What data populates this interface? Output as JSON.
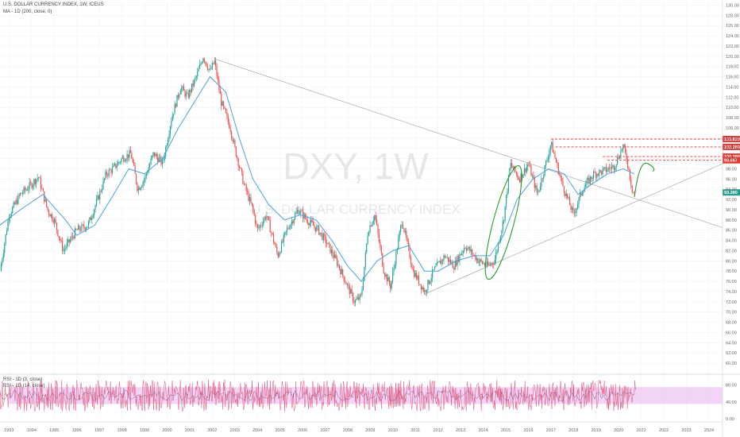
{
  "legend": {
    "title": "U.S. DOLLAR CURRENCY INDEX, 1W, ICEUS",
    "ma": "MA - 1D (200, close, 0)",
    "rsi": "RSI - 1D (3, close)",
    "rsi_ma": "RSI - 1D (14, close)"
  },
  "watermark": {
    "symbol": "DXY, 1W",
    "name": "U.S. DOLLAR CURRENCY INDEX"
  },
  "colors": {
    "up": "#26a69a",
    "down": "#ef5350",
    "ma": "#4aa3df",
    "trend": "#9e9e9e",
    "level": "#e53935",
    "annotation": "#2e9e2e",
    "rsi": "#e05070",
    "rsi_band": "#e8b0ee",
    "current_badge": "#2a9d8f"
  },
  "chart_data": {
    "type": "candlestick",
    "x_axis_labels": [
      "1993",
      "1994",
      "1995",
      "1996",
      "1997",
      "1998",
      "1999",
      "2000",
      "2001",
      "2002",
      "2003",
      "2004",
      "2005",
      "2006",
      "2007",
      "2008",
      "2009",
      "2010",
      "2011",
      "2012",
      "2013",
      "2014",
      "2015",
      "2016",
      "2017",
      "2018",
      "2019",
      "2020",
      "2021",
      "2022",
      "2023",
      "2024"
    ],
    "y_axis_labels": [
      "130.00",
      "128.00",
      "126.00",
      "124.00",
      "122.00",
      "120.00",
      "118.00",
      "116.00",
      "114.00",
      "112.00",
      "110.00",
      "108.00",
      "106.00",
      "104.00",
      "102.00",
      "100.00",
      "98.00",
      "96.00",
      "94.00",
      "92.00",
      "90.00",
      "88.00",
      "86.00",
      "84.00",
      "82.00",
      "80.00",
      "78.00",
      "76.00",
      "74.00",
      "72.00",
      "70.00",
      "68.00",
      "66.00",
      "64.00",
      "62.00",
      "60.00"
    ],
    "ylim": [
      58,
      131
    ],
    "xlim": [
      1992.6,
      2024.6
    ],
    "price_path": [
      [
        1992.6,
        78
      ],
      [
        1993.0,
        89
      ],
      [
        1993.5,
        93
      ],
      [
        1994.0,
        95
      ],
      [
        1994.3,
        96.5
      ],
      [
        1994.7,
        90
      ],
      [
        1995.0,
        88
      ],
      [
        1995.4,
        82
      ],
      [
        1995.7,
        84
      ],
      [
        1996.0,
        86
      ],
      [
        1996.5,
        87
      ],
      [
        1997.0,
        93
      ],
      [
        1997.3,
        97
      ],
      [
        1997.6,
        98
      ],
      [
        1998.0,
        100
      ],
      [
        1998.4,
        101
      ],
      [
        1998.7,
        94
      ],
      [
        1999.0,
        96
      ],
      [
        1999.4,
        101
      ],
      [
        1999.8,
        99
      ],
      [
        2000.2,
        108
      ],
      [
        2000.6,
        114
      ],
      [
        2000.9,
        112
      ],
      [
        2001.3,
        116
      ],
      [
        2001.6,
        120
      ],
      [
        2001.9,
        117
      ],
      [
        2002.1,
        119
      ],
      [
        2002.4,
        111
      ],
      [
        2002.8,
        106
      ],
      [
        2003.0,
        102
      ],
      [
        2003.4,
        95
      ],
      [
        2003.8,
        90
      ],
      [
        2004.0,
        86
      ],
      [
        2004.4,
        89
      ],
      [
        2004.9,
        81
      ],
      [
        2005.3,
        86
      ],
      [
        2005.8,
        90
      ],
      [
        2006.2,
        88
      ],
      [
        2006.7,
        86
      ],
      [
        2007.0,
        84
      ],
      [
        2007.5,
        80
      ],
      [
        2007.9,
        76
      ],
      [
        2008.3,
        72
      ],
      [
        2008.6,
        73
      ],
      [
        2008.9,
        86
      ],
      [
        2009.2,
        89
      ],
      [
        2009.6,
        78
      ],
      [
        2009.9,
        75
      ],
      [
        2010.4,
        88
      ],
      [
        2010.9,
        78
      ],
      [
        2011.4,
        74
      ],
      [
        2011.8,
        78
      ],
      [
        2012.3,
        81
      ],
      [
        2012.7,
        79
      ],
      [
        2013.2,
        83
      ],
      [
        2013.8,
        80
      ],
      [
        2014.2,
        79
      ],
      [
        2014.5,
        80
      ],
      [
        2014.9,
        88
      ],
      [
        2015.2,
        99
      ],
      [
        2015.6,
        96
      ],
      [
        2016.0,
        99
      ],
      [
        2016.4,
        93
      ],
      [
        2016.9,
        101
      ],
      [
        2017.0,
        103
      ],
      [
        2017.5,
        95
      ],
      [
        2018.0,
        89
      ],
      [
        2018.4,
        94
      ],
      [
        2018.9,
        97
      ],
      [
        2019.3,
        97.5
      ],
      [
        2019.8,
        98.5
      ],
      [
        2020.2,
        102.5
      ],
      [
        2020.4,
        99
      ],
      [
        2020.6,
        94
      ],
      [
        2020.75,
        92.5
      ]
    ],
    "ma_path": [
      [
        1992.6,
        87
      ],
      [
        1993.5,
        90
      ],
      [
        1994.5,
        93
      ],
      [
        1995.5,
        88
      ],
      [
        1996.0,
        85
      ],
      [
        1996.8,
        87
      ],
      [
        1997.5,
        92
      ],
      [
        1998.3,
        98
      ],
      [
        1999.0,
        97
      ],
      [
        1999.8,
        100
      ],
      [
        2000.5,
        106
      ],
      [
        2001.2,
        111
      ],
      [
        2001.9,
        116
      ],
      [
        2002.6,
        113
      ],
      [
        2003.2,
        104
      ],
      [
        2003.8,
        96
      ],
      [
        2004.5,
        91
      ],
      [
        2005.2,
        88
      ],
      [
        2005.9,
        89
      ],
      [
        2006.6,
        88
      ],
      [
        2007.3,
        84
      ],
      [
        2008.0,
        79
      ],
      [
        2008.6,
        76
      ],
      [
        2009.3,
        80
      ],
      [
        2010.0,
        82
      ],
      [
        2010.7,
        83
      ],
      [
        2011.4,
        78
      ],
      [
        2012.0,
        78
      ],
      [
        2012.8,
        80
      ],
      [
        2013.6,
        81
      ],
      [
        2014.3,
        81
      ],
      [
        2014.9,
        85
      ],
      [
        2015.5,
        92
      ],
      [
        2016.2,
        96
      ],
      [
        2016.9,
        98
      ],
      [
        2017.6,
        97
      ],
      [
        2018.2,
        93
      ],
      [
        2018.8,
        95
      ],
      [
        2019.5,
        97
      ],
      [
        2020.2,
        98
      ],
      [
        2020.7,
        97
      ]
    ],
    "annotations": {
      "price_labels": [
        "103.820",
        "102.280",
        "100.390",
        "99.667",
        "93.380"
      ],
      "price_levels": [
        103.82,
        102.28,
        100.39,
        99.667
      ],
      "current_price": 93.38
    },
    "rsi_axis_labels": [
      "80.00",
      "40.00",
      "0.00"
    ],
    "rsi_ylim": [
      0,
      100
    ],
    "rsi_band": [
      35,
      75
    ]
  }
}
